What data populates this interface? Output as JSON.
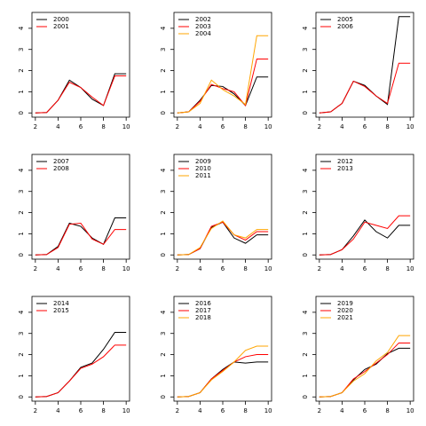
{
  "chart_data": [
    {
      "type": "line",
      "x": [
        2,
        3,
        4,
        5,
        6,
        7,
        8,
        9,
        10
      ],
      "xlim": [
        1.7,
        10.3
      ],
      "ylim": [
        -0.2,
        4.75
      ],
      "xticks": [
        2,
        4,
        6,
        8,
        10
      ],
      "yticks": [
        0,
        1,
        2,
        3,
        4
      ],
      "legend": "topleft",
      "series": [
        {
          "name": "2000",
          "color": "#000000",
          "values": [
            0,
            0.02,
            0.6,
            1.55,
            1.2,
            0.65,
            0.35,
            1.85,
            1.85
          ]
        },
        {
          "name": "2001",
          "color": "#ff0000",
          "values": [
            0,
            0.02,
            0.6,
            1.45,
            1.2,
            0.75,
            0.35,
            1.75,
            1.75
          ]
        }
      ]
    },
    {
      "type": "line",
      "x": [
        2,
        3,
        4,
        5,
        6,
        7,
        8,
        9,
        10
      ],
      "xlim": [
        1.7,
        10.3
      ],
      "ylim": [
        -0.2,
        4.75
      ],
      "xticks": [
        2,
        4,
        6,
        8,
        10
      ],
      "yticks": [
        0,
        1,
        2,
        3,
        4
      ],
      "legend": "topleft",
      "series": [
        {
          "name": "2002",
          "color": "#000000",
          "values": [
            0,
            0.05,
            0.6,
            1.3,
            1.25,
            0.9,
            0.35,
            1.7,
            1.7
          ]
        },
        {
          "name": "2003",
          "color": "#ff0000",
          "values": [
            0,
            0.05,
            0.55,
            1.35,
            1.15,
            1.0,
            0.35,
            2.55,
            2.55
          ]
        },
        {
          "name": "2004",
          "color": "#ffa500",
          "values": [
            0,
            0.05,
            0.45,
            1.55,
            1.1,
            0.8,
            0.4,
            3.65,
            3.65
          ]
        }
      ]
    },
    {
      "type": "line",
      "x": [
        2,
        3,
        4,
        5,
        6,
        7,
        8,
        9,
        10
      ],
      "xlim": [
        1.7,
        10.3
      ],
      "ylim": [
        -0.2,
        4.75
      ],
      "xticks": [
        2,
        4,
        6,
        8,
        10
      ],
      "yticks": [
        0,
        1,
        2,
        3,
        4
      ],
      "legend": "topleft",
      "series": [
        {
          "name": "2005",
          "color": "#000000",
          "values": [
            0,
            0.05,
            0.45,
            1.5,
            1.3,
            0.8,
            0.4,
            4.55,
            4.55
          ]
        },
        {
          "name": "2006",
          "color": "#ff0000",
          "values": [
            0,
            0.05,
            0.45,
            1.5,
            1.25,
            0.8,
            0.45,
            2.35,
            2.35
          ]
        }
      ]
    },
    {
      "type": "line",
      "x": [
        2,
        3,
        4,
        5,
        6,
        7,
        8,
        9,
        10
      ],
      "xlim": [
        1.7,
        10.3
      ],
      "ylim": [
        -0.2,
        4.75
      ],
      "xticks": [
        2,
        4,
        6,
        8,
        10
      ],
      "yticks": [
        0,
        1,
        2,
        3,
        4
      ],
      "legend": "topleft",
      "series": [
        {
          "name": "2007",
          "color": "#000000",
          "values": [
            0,
            0.02,
            0.4,
            1.5,
            1.35,
            0.8,
            0.5,
            1.75,
            1.75
          ]
        },
        {
          "name": "2008",
          "color": "#ff0000",
          "values": [
            0,
            0.02,
            0.35,
            1.45,
            1.5,
            0.75,
            0.5,
            1.2,
            1.2
          ]
        }
      ]
    },
    {
      "type": "line",
      "x": [
        2,
        3,
        4,
        5,
        6,
        7,
        8,
        9,
        10
      ],
      "xlim": [
        1.7,
        10.3
      ],
      "ylim": [
        -0.2,
        4.75
      ],
      "xticks": [
        2,
        4,
        6,
        8,
        10
      ],
      "yticks": [
        0,
        1,
        2,
        3,
        4
      ],
      "legend": "topleft",
      "series": [
        {
          "name": "2009",
          "color": "#000000",
          "values": [
            0,
            0.02,
            0.3,
            1.3,
            1.55,
            0.8,
            0.55,
            0.95,
            0.95
          ]
        },
        {
          "name": "2010",
          "color": "#ff0000",
          "values": [
            0,
            0.02,
            0.3,
            1.35,
            1.55,
            0.95,
            0.7,
            1.1,
            1.1
          ]
        },
        {
          "name": "2011",
          "color": "#ffa500",
          "values": [
            0,
            0.02,
            0.35,
            1.25,
            1.6,
            0.95,
            0.8,
            1.2,
            1.2
          ]
        }
      ]
    },
    {
      "type": "line",
      "x": [
        2,
        3,
        4,
        5,
        6,
        7,
        8,
        9,
        10
      ],
      "xlim": [
        1.7,
        10.3
      ],
      "ylim": [
        -0.2,
        4.75
      ],
      "xticks": [
        2,
        4,
        6,
        8,
        10
      ],
      "yticks": [
        0,
        1,
        2,
        3,
        4
      ],
      "legend": "topleft",
      "series": [
        {
          "name": "2012",
          "color": "#000000",
          "values": [
            0,
            0.02,
            0.25,
            0.9,
            1.65,
            1.1,
            0.8,
            1.4,
            1.4
          ]
        },
        {
          "name": "2013",
          "color": "#ff0000",
          "values": [
            0,
            0.02,
            0.25,
            0.75,
            1.55,
            1.4,
            1.25,
            1.85,
            1.85
          ]
        }
      ]
    },
    {
      "type": "line",
      "x": [
        2,
        3,
        4,
        5,
        6,
        7,
        8,
        9,
        10
      ],
      "xlim": [
        1.7,
        10.3
      ],
      "ylim": [
        -0.2,
        4.75
      ],
      "xticks": [
        2,
        4,
        6,
        8,
        10
      ],
      "yticks": [
        0,
        1,
        2,
        3,
        4
      ],
      "legend": "topleft",
      "series": [
        {
          "name": "2014",
          "color": "#000000",
          "values": [
            0,
            0.02,
            0.2,
            0.75,
            1.4,
            1.6,
            2.25,
            3.05,
            3.05
          ]
        },
        {
          "name": "2015",
          "color": "#ff0000",
          "values": [
            0,
            0.02,
            0.2,
            0.75,
            1.35,
            1.55,
            1.9,
            2.45,
            2.45
          ]
        }
      ]
    },
    {
      "type": "line",
      "x": [
        2,
        3,
        4,
        5,
        6,
        7,
        8,
        9,
        10
      ],
      "xlim": [
        1.7,
        10.3
      ],
      "ylim": [
        -0.2,
        4.75
      ],
      "xticks": [
        2,
        4,
        6,
        8,
        10
      ],
      "yticks": [
        0,
        1,
        2,
        3,
        4
      ],
      "legend": "topleft",
      "series": [
        {
          "name": "2016",
          "color": "#000000",
          "values": [
            0,
            0.02,
            0.2,
            0.85,
            1.3,
            1.65,
            1.6,
            1.65,
            1.65
          ]
        },
        {
          "name": "2017",
          "color": "#ff0000",
          "values": [
            0,
            0.02,
            0.2,
            0.85,
            1.25,
            1.65,
            1.9,
            2.0,
            2.0
          ]
        },
        {
          "name": "2018",
          "color": "#ffa500",
          "values": [
            0,
            0.02,
            0.2,
            0.8,
            1.2,
            1.65,
            2.2,
            2.4,
            2.4
          ]
        }
      ]
    },
    {
      "type": "line",
      "x": [
        2,
        3,
        4,
        5,
        6,
        7,
        8,
        9,
        10
      ],
      "xlim": [
        1.7,
        10.3
      ],
      "ylim": [
        -0.2,
        4.75
      ],
      "xticks": [
        2,
        4,
        6,
        8,
        10
      ],
      "yticks": [
        0,
        1,
        2,
        3,
        4
      ],
      "legend": "topleft",
      "series": [
        {
          "name": "2019",
          "color": "#000000",
          "values": [
            0,
            0.02,
            0.2,
            0.8,
            1.3,
            1.55,
            2.05,
            2.3,
            2.3
          ]
        },
        {
          "name": "2020",
          "color": "#ff0000",
          "values": [
            0,
            0.02,
            0.2,
            0.85,
            1.2,
            1.6,
            2.0,
            2.55,
            2.55
          ]
        },
        {
          "name": "2021",
          "color": "#ffa500",
          "values": [
            0,
            0.02,
            0.2,
            0.75,
            1.1,
            1.7,
            2.1,
            2.9,
            2.9
          ]
        }
      ]
    }
  ]
}
